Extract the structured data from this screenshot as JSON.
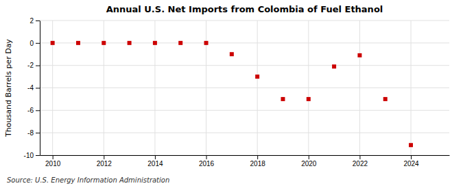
{
  "chart_data": {
    "type": "scatter",
    "title": "Annual U.S. Net Imports from Colombia of Fuel Ethanol",
    "ylabel": "Thousand Barrels per Day",
    "source": "Source: U.S. Energy Information Administration",
    "x": [
      2010,
      2011,
      2012,
      2013,
      2014,
      2015,
      2016,
      2017,
      2018,
      2019,
      2020,
      2021,
      2022,
      2023,
      2024
    ],
    "values": [
      0,
      0,
      0,
      0,
      0,
      0,
      0,
      -1.0,
      -3.0,
      -5.0,
      -5.0,
      -2.1,
      -1.1,
      -5.0,
      -9.1
    ],
    "color": "#cc0000",
    "marker": "square",
    "xlim": [
      2009.5,
      2025.5
    ],
    "xticks": [
      2010,
      2012,
      2014,
      2016,
      2018,
      2020,
      2022,
      2024
    ],
    "ylim": [
      -10,
      2
    ],
    "yticks": [
      -10,
      -8,
      -6,
      -4,
      -2,
      0,
      2
    ],
    "grid": true
  }
}
